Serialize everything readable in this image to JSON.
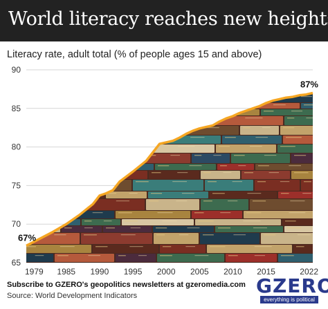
{
  "header": {
    "title": "World literacy reaches new heights"
  },
  "chart_data": {
    "type": "area",
    "title": "World literacy reaches new heights",
    "subtitle": "Literacy rate, adult total (% of people ages 15 and above)",
    "x": [
      1979,
      1981,
      1983,
      1985,
      1987,
      1989,
      1990,
      1991,
      1992,
      1993,
      1995,
      1997,
      1998,
      1999,
      2000,
      2001,
      2002,
      2003,
      2004,
      2005,
      2006,
      2007,
      2008,
      2009,
      2010,
      2011,
      2012,
      2013,
      2014,
      2015,
      2016,
      2017,
      2018,
      2019,
      2020,
      2021,
      2022
    ],
    "series": [
      {
        "values": [
          67.2,
          68.1,
          69.0,
          70.0,
          71.2,
          72.6,
          73.7,
          74.0,
          74.4,
          75.5,
          76.8,
          78.2,
          79.3,
          80.4,
          80.6,
          80.8,
          81.2,
          81.7,
          82.1,
          82.4,
          82.6,
          82.8,
          83.3,
          83.7,
          84.0,
          84.4,
          84.7,
          85.0,
          85.3,
          85.7,
          86.0,
          86.2,
          86.4,
          86.5,
          86.7,
          86.8,
          87.0
        ]
      }
    ],
    "xticks": [
      "1979",
      "1985",
      "1990",
      "1995",
      "2000",
      "2005",
      "2010",
      "2015",
      "2022"
    ],
    "xtick_values": [
      1979,
      1985,
      1990,
      1995,
      2000,
      2005,
      2010,
      2015,
      2022
    ],
    "yticks": [
      "65",
      "70",
      "75",
      "80",
      "85",
      "90"
    ],
    "ytick_values": [
      65,
      70,
      75,
      80,
      85,
      90
    ],
    "xlim": [
      1979,
      2022
    ],
    "ylim": [
      65,
      90
    ],
    "grid": "horizontal",
    "line_color": "#f5a623",
    "annotations": [
      {
        "text": "67%",
        "x": 1979,
        "y": 67
      },
      {
        "text": "87%",
        "x": 2022,
        "y": 87
      }
    ]
  },
  "footer": {
    "cta": "Subscribe to GZERO's geopolitics newsletters at gzeromedia.com",
    "source": "Source: World Development Indicators"
  },
  "logo": {
    "word": "GZERO",
    "tagline": "everything is political",
    "color": "#2a3a8c"
  }
}
